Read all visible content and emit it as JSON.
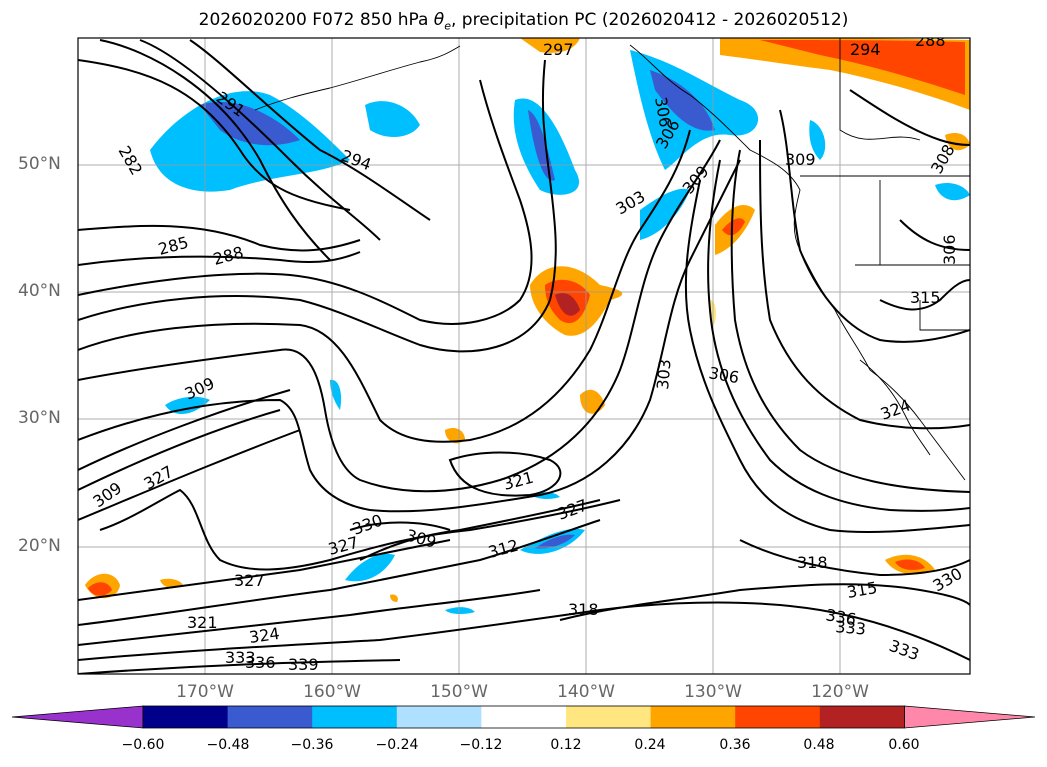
{
  "title_main": "2026020200 F072 850 hPa ",
  "title_sym": "θ",
  "title_sub": "e",
  "title_rest": ", precipitation PC (2026020412 - 2026020512)",
  "lat_labels": [
    "50°N",
    "40°N",
    "30°N",
    "20°N"
  ],
  "lon_labels": [
    "170°W",
    "160°W",
    "150°W",
    "140°W",
    "130°W",
    "120°W"
  ],
  "colorbar": {
    "ticks": [
      "−0.60",
      "−0.48",
      "−0.36",
      "−0.24",
      "−0.12",
      "0.12",
      "0.24",
      "0.36",
      "0.48",
      "0.60"
    ],
    "colors": [
      "#9932cc",
      "#00008b",
      "#3a5bd0",
      "#00bfff",
      "#b0e0ff",
      "#ffffff",
      "#ffe680",
      "#ffa500",
      "#ff4500",
      "#b22222",
      "#ff88aa"
    ]
  },
  "contour_labels": [
    "297",
    "294",
    "288",
    "291",
    "294",
    "282",
    "306",
    "285",
    "288",
    "303",
    "309",
    "306",
    "309",
    "308",
    "306",
    "315",
    "303",
    "306",
    "309",
    "324",
    "327",
    "309",
    "321",
    "327",
    "312",
    "309",
    "327",
    "330",
    "318",
    "318",
    "315",
    "330",
    "336",
    "333",
    "333",
    "321",
    "324",
    "333",
    "336",
    "339",
    "327"
  ],
  "colors": {
    "precip_pos": "#ffa500",
    "precip_neg": "#00bfff",
    "contour": "#000000",
    "grid": "#999999"
  }
}
